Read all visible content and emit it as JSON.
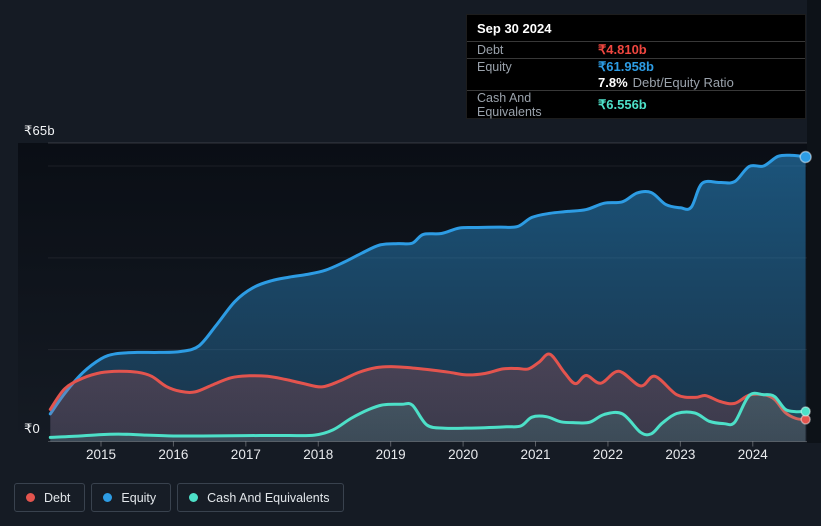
{
  "colors": {
    "debt": "#e3544e",
    "debt_text": "#ef463f",
    "equity": "#2d9ce4",
    "cash": "#4de0c8",
    "background": "#151b24",
    "tooltip_bg": "#000000"
  },
  "tooltip": {
    "date": "Sep 30 2024",
    "debt": {
      "label": "Debt",
      "value": "₹4.810b"
    },
    "equity": {
      "label": "Equity",
      "value": "₹61.958b"
    },
    "ratio": {
      "percent": "7.8%",
      "label": "Debt/Equity Ratio"
    },
    "cash": {
      "label": "Cash And Equivalents",
      "value": "₹6.556b"
    }
  },
  "legend": {
    "debt": "Debt",
    "equity": "Equity",
    "cash": "Cash And Equivalents"
  },
  "chart_data": {
    "type": "area",
    "y_axis": {
      "top_label": "₹65b",
      "zero_label": "₹0",
      "max": 65,
      "min": 0,
      "gridline_values": [
        65,
        60,
        40,
        20,
        0
      ]
    },
    "x_axis": {
      "tick_years": [
        2015,
        2016,
        2017,
        2018,
        2019,
        2020,
        2021,
        2022,
        2023,
        2024
      ],
      "range": [
        2014.27,
        2024.73
      ]
    },
    "legend_position": "bottom-left",
    "unit": "INR billions",
    "series": [
      {
        "name": "Debt",
        "color": "#e3544e",
        "points": [
          [
            2014.3,
            7.0
          ],
          [
            2014.5,
            11.5
          ],
          [
            2014.75,
            13.8
          ],
          [
            2015.0,
            15.0
          ],
          [
            2015.25,
            15.3
          ],
          [
            2015.5,
            15.1
          ],
          [
            2015.7,
            14.2
          ],
          [
            2015.9,
            12.0
          ],
          [
            2016.1,
            10.9
          ],
          [
            2016.3,
            10.8
          ],
          [
            2016.55,
            12.4
          ],
          [
            2016.8,
            13.9
          ],
          [
            2017.05,
            14.3
          ],
          [
            2017.3,
            14.2
          ],
          [
            2017.55,
            13.5
          ],
          [
            2017.8,
            12.6
          ],
          [
            2018.05,
            11.9
          ],
          [
            2018.3,
            13.2
          ],
          [
            2018.55,
            15.0
          ],
          [
            2018.8,
            16.1
          ],
          [
            2019.05,
            16.3
          ],
          [
            2019.3,
            16.0
          ],
          [
            2019.55,
            15.6
          ],
          [
            2019.8,
            15.1
          ],
          [
            2020.05,
            14.5
          ],
          [
            2020.3,
            14.8
          ],
          [
            2020.55,
            15.8
          ],
          [
            2020.75,
            15.9
          ],
          [
            2020.9,
            15.8
          ],
          [
            2021.05,
            17.3
          ],
          [
            2021.2,
            19.0
          ],
          [
            2021.4,
            15.0
          ],
          [
            2021.55,
            12.6
          ],
          [
            2021.7,
            14.4
          ],
          [
            2021.9,
            12.7
          ],
          [
            2022.15,
            15.3
          ],
          [
            2022.45,
            12.1
          ],
          [
            2022.65,
            14.2
          ],
          [
            2022.95,
            10.2
          ],
          [
            2023.2,
            9.6
          ],
          [
            2023.35,
            10.0
          ],
          [
            2023.55,
            8.7
          ],
          [
            2023.75,
            8.3
          ],
          [
            2023.95,
            10.1
          ],
          [
            2024.15,
            10.2
          ],
          [
            2024.3,
            9.2
          ],
          [
            2024.45,
            6.3
          ],
          [
            2024.6,
            5.0
          ],
          [
            2024.73,
            4.81
          ]
        ]
      },
      {
        "name": "Equity",
        "color": "#2d9ce4",
        "points": [
          [
            2014.3,
            6.0
          ],
          [
            2014.5,
            10.5
          ],
          [
            2014.75,
            15.0
          ],
          [
            2015.0,
            18.0
          ],
          [
            2015.2,
            19.1
          ],
          [
            2015.5,
            19.4
          ],
          [
            2015.8,
            19.4
          ],
          [
            2016.1,
            19.6
          ],
          [
            2016.35,
            20.8
          ],
          [
            2016.6,
            25.5
          ],
          [
            2016.85,
            30.5
          ],
          [
            2017.1,
            33.5
          ],
          [
            2017.35,
            35.0
          ],
          [
            2017.6,
            35.8
          ],
          [
            2017.85,
            36.4
          ],
          [
            2018.1,
            37.3
          ],
          [
            2018.35,
            39.0
          ],
          [
            2018.6,
            41.0
          ],
          [
            2018.85,
            42.8
          ],
          [
            2019.1,
            43.1
          ],
          [
            2019.3,
            43.2
          ],
          [
            2019.45,
            45.1
          ],
          [
            2019.7,
            45.3
          ],
          [
            2019.95,
            46.5
          ],
          [
            2020.2,
            46.6
          ],
          [
            2020.5,
            46.7
          ],
          [
            2020.75,
            46.8
          ],
          [
            2020.95,
            48.8
          ],
          [
            2021.2,
            49.7
          ],
          [
            2021.45,
            50.1
          ],
          [
            2021.7,
            50.5
          ],
          [
            2021.95,
            51.9
          ],
          [
            2022.2,
            52.2
          ],
          [
            2022.4,
            54.1
          ],
          [
            2022.6,
            54.2
          ],
          [
            2022.8,
            51.6
          ],
          [
            2023.0,
            50.9
          ],
          [
            2023.15,
            51.0
          ],
          [
            2023.3,
            56.2
          ],
          [
            2023.55,
            56.4
          ],
          [
            2023.75,
            56.6
          ],
          [
            2023.95,
            59.9
          ],
          [
            2024.15,
            60.0
          ],
          [
            2024.35,
            62.1
          ],
          [
            2024.55,
            62.3
          ],
          [
            2024.73,
            61.958
          ]
        ]
      },
      {
        "name": "Cash And Equivalents",
        "color": "#4de0c8",
        "points": [
          [
            2014.3,
            0.9
          ],
          [
            2014.6,
            1.1
          ],
          [
            2015.0,
            1.5
          ],
          [
            2015.3,
            1.6
          ],
          [
            2015.6,
            1.4
          ],
          [
            2016.0,
            1.2
          ],
          [
            2016.4,
            1.2
          ],
          [
            2016.8,
            1.25
          ],
          [
            2017.2,
            1.3
          ],
          [
            2017.6,
            1.3
          ],
          [
            2017.95,
            1.4
          ],
          [
            2018.2,
            2.5
          ],
          [
            2018.45,
            5.0
          ],
          [
            2018.7,
            7.0
          ],
          [
            2018.9,
            8.0
          ],
          [
            2019.15,
            8.1
          ],
          [
            2019.3,
            7.9
          ],
          [
            2019.5,
            3.6
          ],
          [
            2019.75,
            2.9
          ],
          [
            2020.0,
            2.9
          ],
          [
            2020.3,
            3.0
          ],
          [
            2020.6,
            3.2
          ],
          [
            2020.8,
            3.4
          ],
          [
            2020.95,
            5.3
          ],
          [
            2021.15,
            5.4
          ],
          [
            2021.35,
            4.3
          ],
          [
            2021.55,
            4.1
          ],
          [
            2021.75,
            4.2
          ],
          [
            2021.95,
            5.9
          ],
          [
            2022.2,
            6.0
          ],
          [
            2022.45,
            2.0
          ],
          [
            2022.6,
            1.7
          ],
          [
            2022.75,
            4.0
          ],
          [
            2022.95,
            6.1
          ],
          [
            2023.2,
            6.2
          ],
          [
            2023.4,
            4.4
          ],
          [
            2023.6,
            3.9
          ],
          [
            2023.75,
            4.2
          ],
          [
            2023.95,
            10.0
          ],
          [
            2024.15,
            10.2
          ],
          [
            2024.3,
            9.8
          ],
          [
            2024.45,
            7.0
          ],
          [
            2024.6,
            6.5
          ],
          [
            2024.73,
            6.556
          ]
        ]
      }
    ]
  }
}
